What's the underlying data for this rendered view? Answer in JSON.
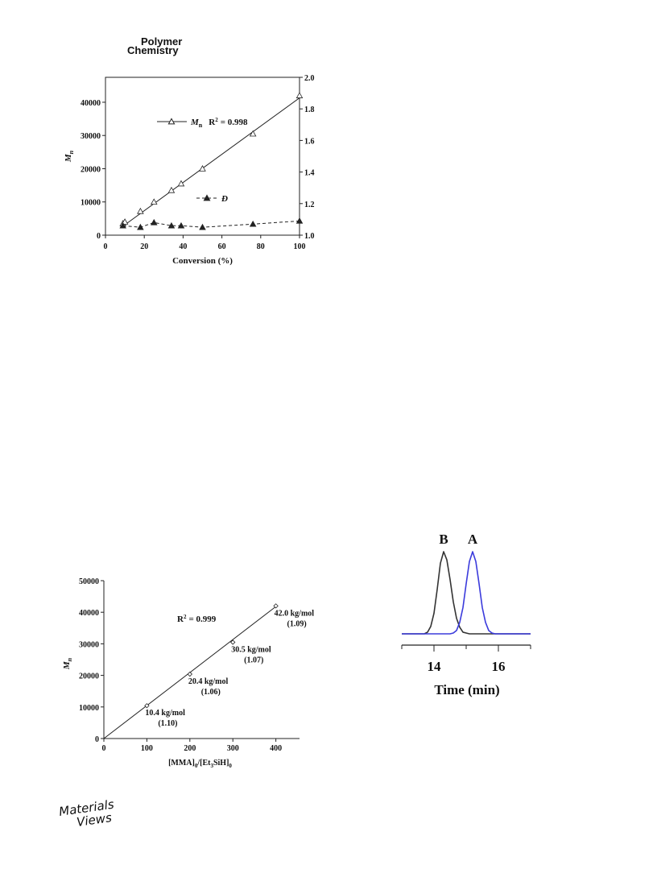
{
  "header": {
    "journal_line1": "Polymer",
    "journal_line2": "Chemistry"
  },
  "footer": {
    "logo_line1": "Materials",
    "logo_line2": "Views"
  },
  "chart_data": [
    {
      "type": "line",
      "xlabel": "Conversion (%)",
      "ylabel": "M",
      "ylabel_sub": "n",
      "xlim": [
        0,
        100
      ],
      "xticks": [
        0,
        20,
        40,
        60,
        80,
        100
      ],
      "ylim": [
        0,
        47500
      ],
      "yticks": [
        0,
        10000,
        20000,
        30000,
        40000
      ],
      "y2lim": [
        1.0,
        2.0
      ],
      "y2ticks": [
        {
          "value": 1.0,
          "label": "1.0"
        },
        {
          "value": 1.2,
          "label": "1.2"
        },
        {
          "value": 1.4,
          "label": "1.4"
        },
        {
          "value": 1.6,
          "label": "1.6"
        },
        {
          "value": 1.8,
          "label": "1.8"
        },
        {
          "value": 2.0,
          "label": "2.0"
        }
      ],
      "series": [
        {
          "name": "M",
          "name_sub": "n",
          "color": "#222222",
          "marker": "open-triangle",
          "dashed": false,
          "r2": {
            "label": "R",
            "sup": "2",
            "value": "= 0.998"
          },
          "x": [
            9,
            10,
            18,
            25,
            34,
            39,
            50,
            76,
            100
          ],
          "values": [
            3500,
            4000,
            7200,
            10000,
            13500,
            15500,
            20000,
            30500,
            42000
          ],
          "fit": {
            "x": [
              9,
              100
            ],
            "values": [
              2700,
              41300
            ]
          }
        },
        {
          "name": "Đ",
          "color": "#222222",
          "marker": "filled-triangle",
          "dashed": true,
          "axis": "y2",
          "x": [
            9,
            18,
            25,
            34,
            39,
            50,
            76,
            100
          ],
          "values": [
            1.06,
            1.05,
            1.08,
            1.06,
            1.06,
            1.05,
            1.07,
            1.09
          ]
        }
      ]
    },
    {
      "type": "scatter",
      "xlabel_parts": [
        {
          "text": "[MMA]",
          "script": "normal"
        },
        {
          "text": "0",
          "script": "sub"
        },
        {
          "text": "/[Et",
          "script": "normal"
        },
        {
          "text": "3",
          "script": "sub"
        },
        {
          "text": "SiH]",
          "script": "normal"
        },
        {
          "text": "0",
          "script": "sub"
        }
      ],
      "ylabel": "M",
      "ylabel_sub": "n",
      "xlim": [
        0,
        455
      ],
      "xticks": [
        0,
        100,
        200,
        300,
        400
      ],
      "ylim": [
        0,
        50000
      ],
      "yticks": [
        0,
        10000,
        20000,
        30000,
        40000,
        50000
      ],
      "r2": {
        "label": "R",
        "sup": "2",
        "value": "= 0.999"
      },
      "series": [
        {
          "color": "#222222",
          "marker": "open-diamond",
          "x": [
            100,
            200,
            300,
            400
          ],
          "values": [
            10400,
            20400,
            30500,
            42000
          ],
          "value_labels": [
            "10.4 kg/mol",
            "20.4 kg/mol",
            "30.5 kg/mol",
            "42.0 kg/mol"
          ],
          "dispersity_labels": [
            "(1.10)",
            "(1.06)",
            "(1.07)",
            "(1.09)"
          ],
          "fit": {
            "x": [
              0,
              400
            ],
            "values": [
              0,
              41800
            ]
          }
        }
      ]
    },
    {
      "type": "line",
      "xlabel": "Time (min)",
      "xlim": [
        13,
        17
      ],
      "xticks": [
        14,
        16
      ],
      "minor_xticks": [
        13,
        15,
        17
      ],
      "x": [
        13.0,
        13.1,
        13.2,
        13.3,
        13.4,
        13.5,
        13.6,
        13.7,
        13.8,
        13.9,
        14.0,
        14.1,
        14.2,
        14.3,
        14.4,
        14.5,
        14.6,
        14.7,
        14.8,
        14.9,
        15.0,
        15.1,
        15.2,
        15.3,
        15.4,
        15.5,
        15.6,
        15.7,
        15.8,
        15.9,
        16.0,
        16.1,
        16.2,
        16.3,
        16.4,
        16.5,
        16.6,
        16.7,
        16.8,
        16.9,
        17.0
      ],
      "ylim": [
        0,
        1
      ],
      "series": [
        {
          "name": "B",
          "color": "#333333",
          "values": [
            0,
            0,
            0,
            0,
            0,
            0,
            0,
            0,
            0.02,
            0.09,
            0.25,
            0.54,
            0.86,
            1,
            0.9,
            0.66,
            0.39,
            0.19,
            0.08,
            0.02,
            0.01,
            0,
            0,
            0,
            0,
            0,
            0,
            0,
            0,
            0,
            0,
            0,
            0,
            0,
            0,
            0,
            0,
            0,
            0,
            0,
            0
          ]
        },
        {
          "name": "A",
          "color": "#3b3bdc",
          "values": [
            0,
            0,
            0,
            0,
            0,
            0,
            0,
            0,
            0,
            0,
            0,
            0,
            0,
            0,
            0,
            0,
            0.01,
            0.04,
            0.14,
            0.32,
            0.61,
            0.88,
            1,
            0.88,
            0.61,
            0.32,
            0.14,
            0.04,
            0.01,
            0,
            0,
            0,
            0,
            0,
            0,
            0,
            0,
            0,
            0,
            0,
            0
          ]
        }
      ]
    }
  ]
}
